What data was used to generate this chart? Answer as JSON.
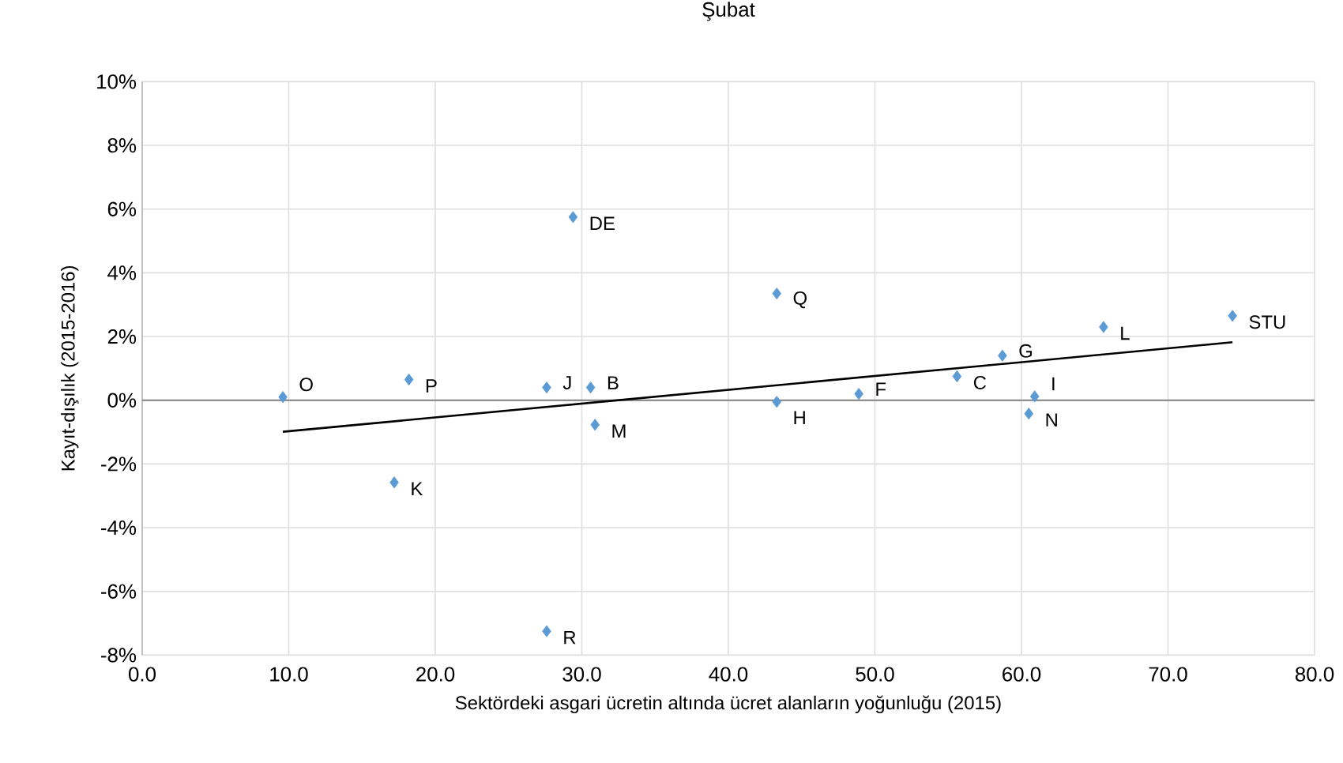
{
  "chart_data": {
    "type": "scatter",
    "title": "Şubat",
    "xlabel": "Sektördeki asgari ücretin altında ücret alanların yoğunluğu (2015)",
    "ylabel": "Kayıt-dışılık (2015-2016)",
    "xlim": [
      0,
      80
    ],
    "ylim": [
      -8,
      10
    ],
    "xticks": [
      {
        "value": 0,
        "label": "0.0"
      },
      {
        "value": 10,
        "label": "10.0"
      },
      {
        "value": 20,
        "label": "20.0"
      },
      {
        "value": 30,
        "label": "30.0"
      },
      {
        "value": 40,
        "label": "40.0"
      },
      {
        "value": 50,
        "label": "50.0"
      },
      {
        "value": 60,
        "label": "60.0"
      },
      {
        "value": 70,
        "label": "70.0"
      },
      {
        "value": 80,
        "label": "80.0"
      }
    ],
    "yticks": [
      {
        "value": -8,
        "label": "-8%"
      },
      {
        "value": -6,
        "label": "-6%"
      },
      {
        "value": -4,
        "label": "-4%"
      },
      {
        "value": -2,
        "label": "-2%"
      },
      {
        "value": 0,
        "label": "0%"
      },
      {
        "value": 2,
        "label": "2%"
      },
      {
        "value": 4,
        "label": "4%"
      },
      {
        "value": 6,
        "label": "6%"
      },
      {
        "value": 8,
        "label": "8%"
      },
      {
        "value": 10,
        "label": "10%"
      }
    ],
    "grid": true,
    "marker": "diamond",
    "ref_lines": [
      {
        "axis": "y",
        "value": 0,
        "color": "#808080"
      }
    ],
    "series": [
      {
        "type": "scatter",
        "color": "#5b9bd5",
        "x": [
          9.6,
          18.2,
          27.6,
          30.6,
          29.4,
          30.9,
          17.2,
          27.6,
          43.3,
          43.3,
          48.9,
          55.6,
          58.7,
          60.9,
          60.5,
          65.6,
          74.4
        ],
        "values": [
          0.1,
          0.65,
          0.4,
          0.4,
          5.75,
          -0.77,
          -2.58,
          -7.25,
          3.35,
          -0.05,
          0.2,
          0.75,
          1.4,
          0.12,
          -0.42,
          2.3,
          2.65
        ],
        "value_labels": [
          "O",
          "P",
          "J",
          "B",
          "DE",
          "M",
          "K",
          "R",
          "Q",
          "H",
          "F",
          "C",
          "G",
          "I",
          "N",
          "L",
          "STU"
        ]
      },
      {
        "type": "line",
        "color": "#000000",
        "marker": "none",
        "x": [
          9.6,
          74.4
        ],
        "values": [
          -0.99,
          1.82
        ]
      }
    ]
  }
}
